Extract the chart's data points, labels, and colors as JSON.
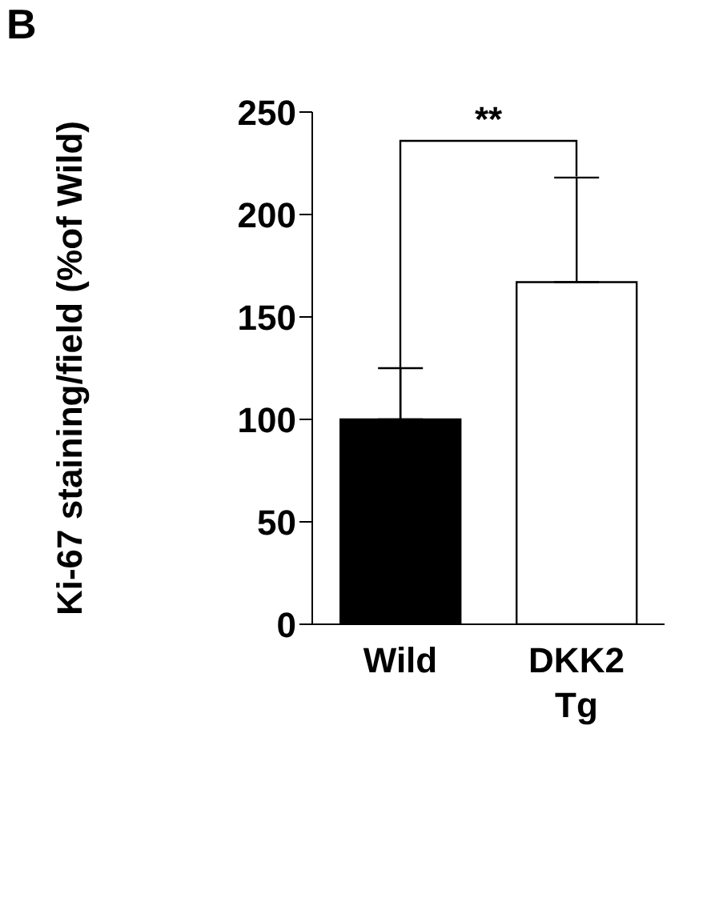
{
  "chart_data": {
    "type": "bar",
    "ylabel": "Ki-67 staining/field (%of Wild)",
    "categories": [
      "Wild",
      "DKK2 Tg"
    ],
    "values": [
      100,
      167
    ],
    "colors": [
      "#000000",
      "#ffffff"
    ],
    "errors": [
      [
        100,
        125
      ],
      [
        167,
        218
      ]
    ],
    "ylim": [
      0,
      250
    ],
    "yticks": [
      0,
      50,
      100,
      150,
      200,
      250
    ],
    "grid": false,
    "legend": false,
    "annotations": [
      "B",
      "**"
    ]
  }
}
